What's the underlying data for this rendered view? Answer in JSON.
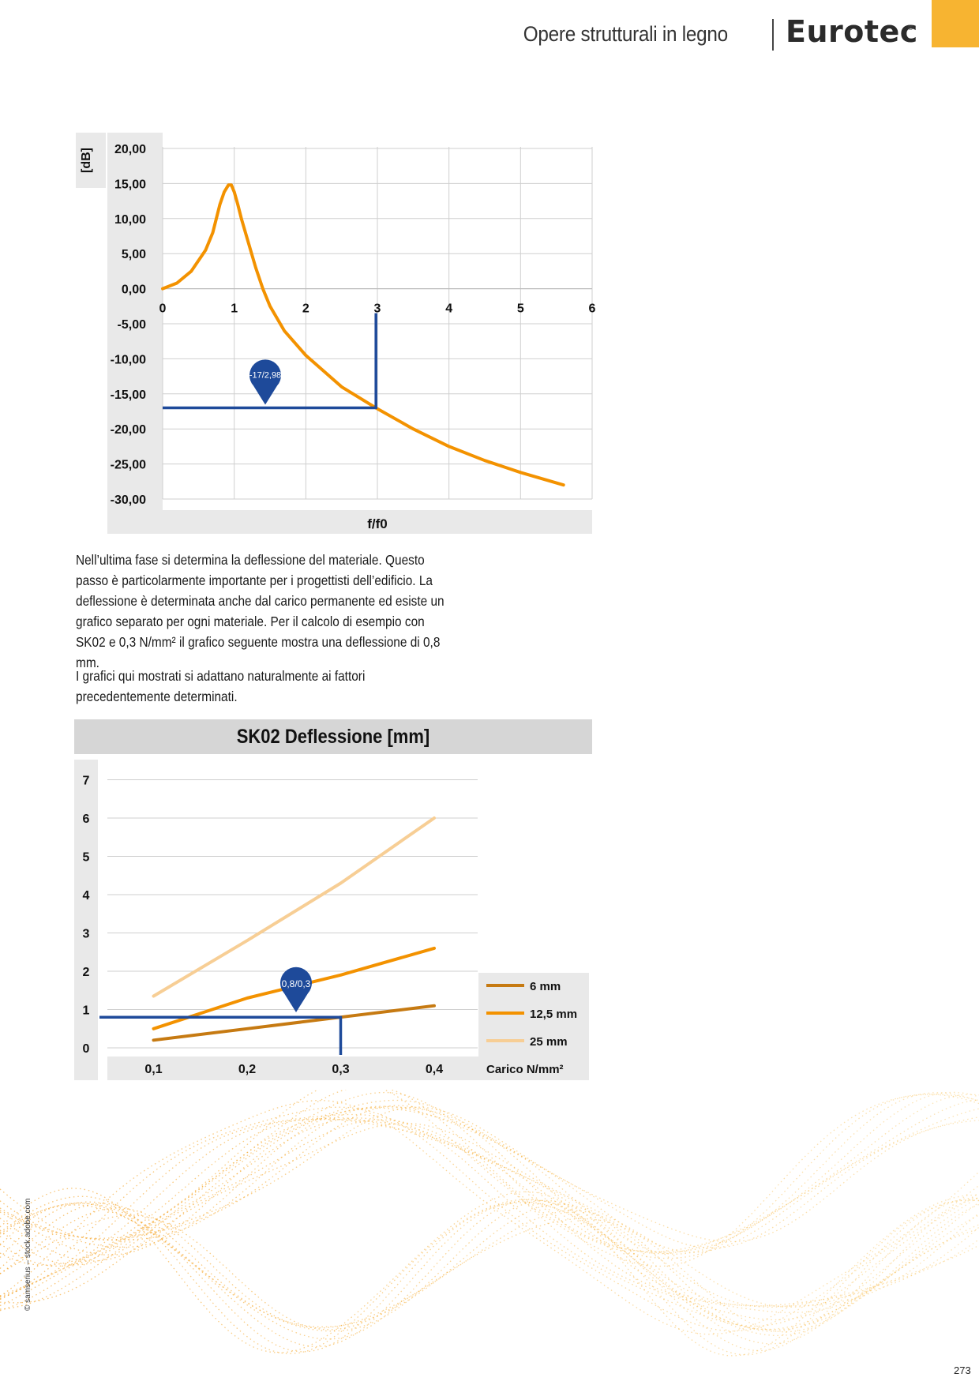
{
  "header": {
    "section": "Opere strutturali in legno",
    "logo_text": "Eurotec",
    "logo_reg": "®",
    "accent": "#f7b431"
  },
  "chart_data": [
    {
      "type": "line",
      "ylabel": "[dB]",
      "xlabel": "f/f0",
      "xlim": [
        0,
        6
      ],
      "ylim": [
        -30,
        20
      ],
      "x_ticks": [
        "0",
        "1",
        "2",
        "3",
        "4",
        "5",
        "6"
      ],
      "y_ticks": [
        "20,00",
        "15,00",
        "10,00",
        "5,00",
        "0,00",
        "-5,00",
        "-10,00",
        "-15,00",
        "-20,00",
        "-25,00",
        "-30,00"
      ],
      "series": [
        {
          "color": "#f39200",
          "x": [
            0,
            0.2,
            0.4,
            0.6,
            0.7,
            0.8,
            0.86,
            0.92,
            0.96,
            1.0,
            1.05,
            1.1,
            1.2,
            1.3,
            1.4,
            1.5,
            1.7,
            2.0,
            2.5,
            2.98,
            3.5,
            4.0,
            4.5,
            5.0,
            5.6
          ],
          "y": [
            0.0,
            0.8,
            2.5,
            5.5,
            8.0,
            12.0,
            13.8,
            14.8,
            14.8,
            13.8,
            12.0,
            10.0,
            6.5,
            3.0,
            0.0,
            -2.5,
            -6.0,
            -9.5,
            -14.0,
            -17.0,
            -20.0,
            -22.5,
            -24.5,
            -26.2,
            -28.0
          ]
        }
      ],
      "marker": {
        "label": "-17/2,98",
        "x": 2.98,
        "y": -17,
        "color": "#1e4a9a"
      }
    },
    {
      "type": "line",
      "title": "SK02 Deflessione [mm]",
      "xlabel": "Carico N/mm²",
      "categories": [
        "0,1",
        "0,2",
        "0,3",
        "0,4"
      ],
      "x": [
        0.1,
        0.2,
        0.3,
        0.4
      ],
      "ylim": [
        0,
        7
      ],
      "y_ticks": [
        "7",
        "6",
        "5",
        "4",
        "3",
        "2",
        "1",
        "0"
      ],
      "series": [
        {
          "name": "6 mm",
          "color": "#c67a12",
          "values": [
            0.2,
            0.5,
            0.8,
            1.1
          ]
        },
        {
          "name": "12,5 mm",
          "color": "#f39200",
          "values": [
            0.5,
            1.3,
            1.9,
            2.6
          ]
        },
        {
          "name": "25 mm",
          "color": "#f7ce95",
          "values": [
            1.35,
            2.8,
            4.3,
            6.0
          ]
        }
      ],
      "marker": {
        "label": "0,8/0,3",
        "x": 0.3,
        "y": 0.8,
        "color": "#1e4a9a"
      }
    }
  ],
  "paragraphs": [
    "Nell’ultima fase si determina la deflessione del materiale. Questo passo è particolarmente importante per i progettisti dell’edificio. La deflessione è determinata anche dal carico permanente ed esiste un grafico separato per ogni materiale. Per il calcolo di esempio con SK02 e 0,3 N/mm² il grafico seguente mostra una deflessione di 0,8 mm.",
    "I grafici qui mostrati si adattano naturalmente ai fattori precedentemente determinati."
  ],
  "credit": "© samserius – stock.adobe.com",
  "page_number": "273"
}
